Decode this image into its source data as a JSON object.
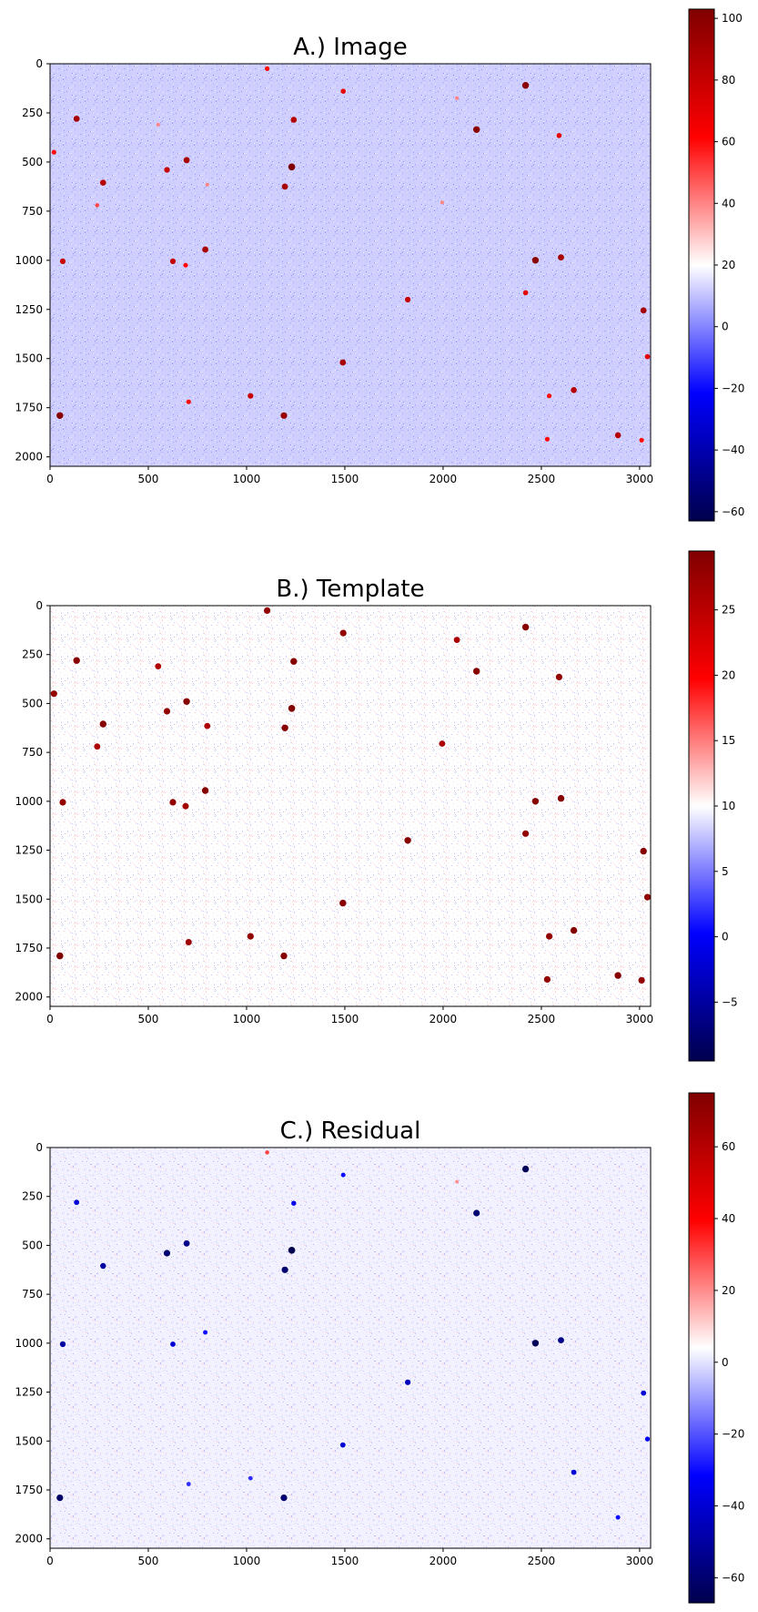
{
  "chart_data": [
    {
      "type": "heatmap",
      "title": "A.) Image",
      "xlim": [
        0,
        3056
      ],
      "ylim": [
        2048,
        0
      ],
      "xticks": [
        0,
        500,
        1000,
        1500,
        2000,
        2500,
        3000
      ],
      "yticks": [
        0,
        250,
        500,
        750,
        1000,
        1250,
        1500,
        1750,
        2000
      ],
      "colormap": "seismic",
      "colorbar": {
        "min": -63,
        "max": 103,
        "ticks": [
          -60,
          -40,
          -20,
          0,
          20,
          40,
          60,
          80,
          100
        ]
      },
      "background_value": 12,
      "sources": [
        {
          "x": 1105,
          "y": 25,
          "v": 60
        },
        {
          "x": 1492,
          "y": 140,
          "v": 70
        },
        {
          "x": 2420,
          "y": 110,
          "v": 100
        },
        {
          "x": 2070,
          "y": 175,
          "v": 40
        },
        {
          "x": 135,
          "y": 280,
          "v": 90
        },
        {
          "x": 1240,
          "y": 285,
          "v": 85
        },
        {
          "x": 550,
          "y": 310,
          "v": 40
        },
        {
          "x": 2170,
          "y": 335,
          "v": 100
        },
        {
          "x": 2590,
          "y": 365,
          "v": 70
        },
        {
          "x": 20,
          "y": 450,
          "v": 60
        },
        {
          "x": 695,
          "y": 490,
          "v": 90
        },
        {
          "x": 1230,
          "y": 525,
          "v": 103
        },
        {
          "x": 595,
          "y": 540,
          "v": 80
        },
        {
          "x": 270,
          "y": 605,
          "v": 85
        },
        {
          "x": 1195,
          "y": 625,
          "v": 90
        },
        {
          "x": 800,
          "y": 615,
          "v": 40
        },
        {
          "x": 1995,
          "y": 705,
          "v": 40
        },
        {
          "x": 240,
          "y": 720,
          "v": 50
        },
        {
          "x": 790,
          "y": 945,
          "v": 90
        },
        {
          "x": 2470,
          "y": 1000,
          "v": 100
        },
        {
          "x": 2600,
          "y": 985,
          "v": 90
        },
        {
          "x": 65,
          "y": 1005,
          "v": 80
        },
        {
          "x": 625,
          "y": 1005,
          "v": 80
        },
        {
          "x": 690,
          "y": 1025,
          "v": 60
        },
        {
          "x": 1820,
          "y": 1200,
          "v": 80
        },
        {
          "x": 2420,
          "y": 1165,
          "v": 70
        },
        {
          "x": 3020,
          "y": 1255,
          "v": 90
        },
        {
          "x": 1490,
          "y": 1520,
          "v": 90
        },
        {
          "x": 3040,
          "y": 1490,
          "v": 70
        },
        {
          "x": 2665,
          "y": 1660,
          "v": 85
        },
        {
          "x": 2540,
          "y": 1690,
          "v": 60
        },
        {
          "x": 1020,
          "y": 1690,
          "v": 80
        },
        {
          "x": 705,
          "y": 1720,
          "v": 60
        },
        {
          "x": 1190,
          "y": 1790,
          "v": 95
        },
        {
          "x": 50,
          "y": 1790,
          "v": 100
        },
        {
          "x": 2890,
          "y": 1890,
          "v": 85
        },
        {
          "x": 2530,
          "y": 1910,
          "v": 60
        },
        {
          "x": 3010,
          "y": 1915,
          "v": 60
        }
      ]
    },
    {
      "type": "heatmap",
      "title": "B.) Template",
      "xlim": [
        0,
        3056
      ],
      "ylim": [
        2048,
        0
      ],
      "xticks": [
        0,
        500,
        1000,
        1500,
        2000,
        2500,
        3000
      ],
      "yticks": [
        0,
        250,
        500,
        750,
        1000,
        1250,
        1500,
        1750,
        2000
      ],
      "colormap": "seismic",
      "colorbar": {
        "min": -9.5,
        "max": 29.5,
        "ticks": [
          -5,
          0,
          5,
          10,
          15,
          20,
          25
        ]
      },
      "background_value": 10,
      "sources": [
        {
          "x": 1105,
          "y": 25,
          "v": 28
        },
        {
          "x": 1492,
          "y": 140,
          "v": 28
        },
        {
          "x": 2420,
          "y": 110,
          "v": 29
        },
        {
          "x": 2070,
          "y": 175,
          "v": 26
        },
        {
          "x": 135,
          "y": 280,
          "v": 29
        },
        {
          "x": 1240,
          "y": 285,
          "v": 29
        },
        {
          "x": 550,
          "y": 310,
          "v": 26
        },
        {
          "x": 2170,
          "y": 335,
          "v": 29
        },
        {
          "x": 2590,
          "y": 365,
          "v": 28
        },
        {
          "x": 20,
          "y": 450,
          "v": 28
        },
        {
          "x": 695,
          "y": 490,
          "v": 29
        },
        {
          "x": 1230,
          "y": 525,
          "v": 29.5
        },
        {
          "x": 595,
          "y": 540,
          "v": 28
        },
        {
          "x": 270,
          "y": 605,
          "v": 29
        },
        {
          "x": 1195,
          "y": 625,
          "v": 29
        },
        {
          "x": 800,
          "y": 615,
          "v": 26
        },
        {
          "x": 1995,
          "y": 705,
          "v": 26
        },
        {
          "x": 240,
          "y": 720,
          "v": 26
        },
        {
          "x": 790,
          "y": 945,
          "v": 29
        },
        {
          "x": 2470,
          "y": 1000,
          "v": 29
        },
        {
          "x": 2600,
          "y": 985,
          "v": 29
        },
        {
          "x": 65,
          "y": 1005,
          "v": 28
        },
        {
          "x": 625,
          "y": 1005,
          "v": 28
        },
        {
          "x": 690,
          "y": 1025,
          "v": 27
        },
        {
          "x": 1820,
          "y": 1200,
          "v": 29
        },
        {
          "x": 2420,
          "y": 1165,
          "v": 28
        },
        {
          "x": 3020,
          "y": 1255,
          "v": 29
        },
        {
          "x": 1490,
          "y": 1520,
          "v": 29
        },
        {
          "x": 3040,
          "y": 1490,
          "v": 28
        },
        {
          "x": 2665,
          "y": 1660,
          "v": 29
        },
        {
          "x": 2540,
          "y": 1690,
          "v": 28
        },
        {
          "x": 1020,
          "y": 1690,
          "v": 28
        },
        {
          "x": 705,
          "y": 1720,
          "v": 27
        },
        {
          "x": 1190,
          "y": 1790,
          "v": 29
        },
        {
          "x": 50,
          "y": 1790,
          "v": 29.5
        },
        {
          "x": 2890,
          "y": 1890,
          "v": 29
        },
        {
          "x": 2530,
          "y": 1910,
          "v": 28
        },
        {
          "x": 3010,
          "y": 1915,
          "v": 28
        }
      ]
    },
    {
      "type": "heatmap",
      "title": "C.) Residual",
      "xlim": [
        0,
        3056
      ],
      "ylim": [
        2048,
        0
      ],
      "xticks": [
        0,
        500,
        1000,
        1500,
        2000,
        2500,
        3000
      ],
      "yticks": [
        0,
        250,
        500,
        750,
        1000,
        1250,
        1500,
        1750,
        2000
      ],
      "colormap": "seismic",
      "colorbar": {
        "min": -67,
        "max": 75,
        "ticks": [
          -60,
          -40,
          -20,
          0,
          20,
          40,
          60
        ]
      },
      "background_value": 2,
      "sources": [
        {
          "x": 1105,
          "y": 25,
          "v": 30
        },
        {
          "x": 1492,
          "y": 140,
          "v": -30
        },
        {
          "x": 2420,
          "y": 110,
          "v": -65
        },
        {
          "x": 2070,
          "y": 175,
          "v": 20
        },
        {
          "x": 135,
          "y": 280,
          "v": -40
        },
        {
          "x": 1240,
          "y": 285,
          "v": -35
        },
        {
          "x": 2170,
          "y": 335,
          "v": -60
        },
        {
          "x": 695,
          "y": 490,
          "v": -55
        },
        {
          "x": 1230,
          "y": 525,
          "v": -67
        },
        {
          "x": 595,
          "y": 540,
          "v": -60
        },
        {
          "x": 270,
          "y": 605,
          "v": -50
        },
        {
          "x": 1195,
          "y": 625,
          "v": -60
        },
        {
          "x": 790,
          "y": 945,
          "v": -30
        },
        {
          "x": 2470,
          "y": 1000,
          "v": -65
        },
        {
          "x": 2600,
          "y": 985,
          "v": -55
        },
        {
          "x": 65,
          "y": 1005,
          "v": -50
        },
        {
          "x": 625,
          "y": 1005,
          "v": -40
        },
        {
          "x": 1820,
          "y": 1200,
          "v": -45
        },
        {
          "x": 3020,
          "y": 1255,
          "v": -40
        },
        {
          "x": 1490,
          "y": 1520,
          "v": -40
        },
        {
          "x": 3040,
          "y": 1490,
          "v": -35
        },
        {
          "x": 2665,
          "y": 1660,
          "v": -40
        },
        {
          "x": 1020,
          "y": 1690,
          "v": -25
        },
        {
          "x": 1190,
          "y": 1790,
          "v": -60
        },
        {
          "x": 50,
          "y": 1790,
          "v": -62
        },
        {
          "x": 2890,
          "y": 1890,
          "v": -30
        },
        {
          "x": 705,
          "y": 1720,
          "v": -25
        }
      ]
    }
  ]
}
